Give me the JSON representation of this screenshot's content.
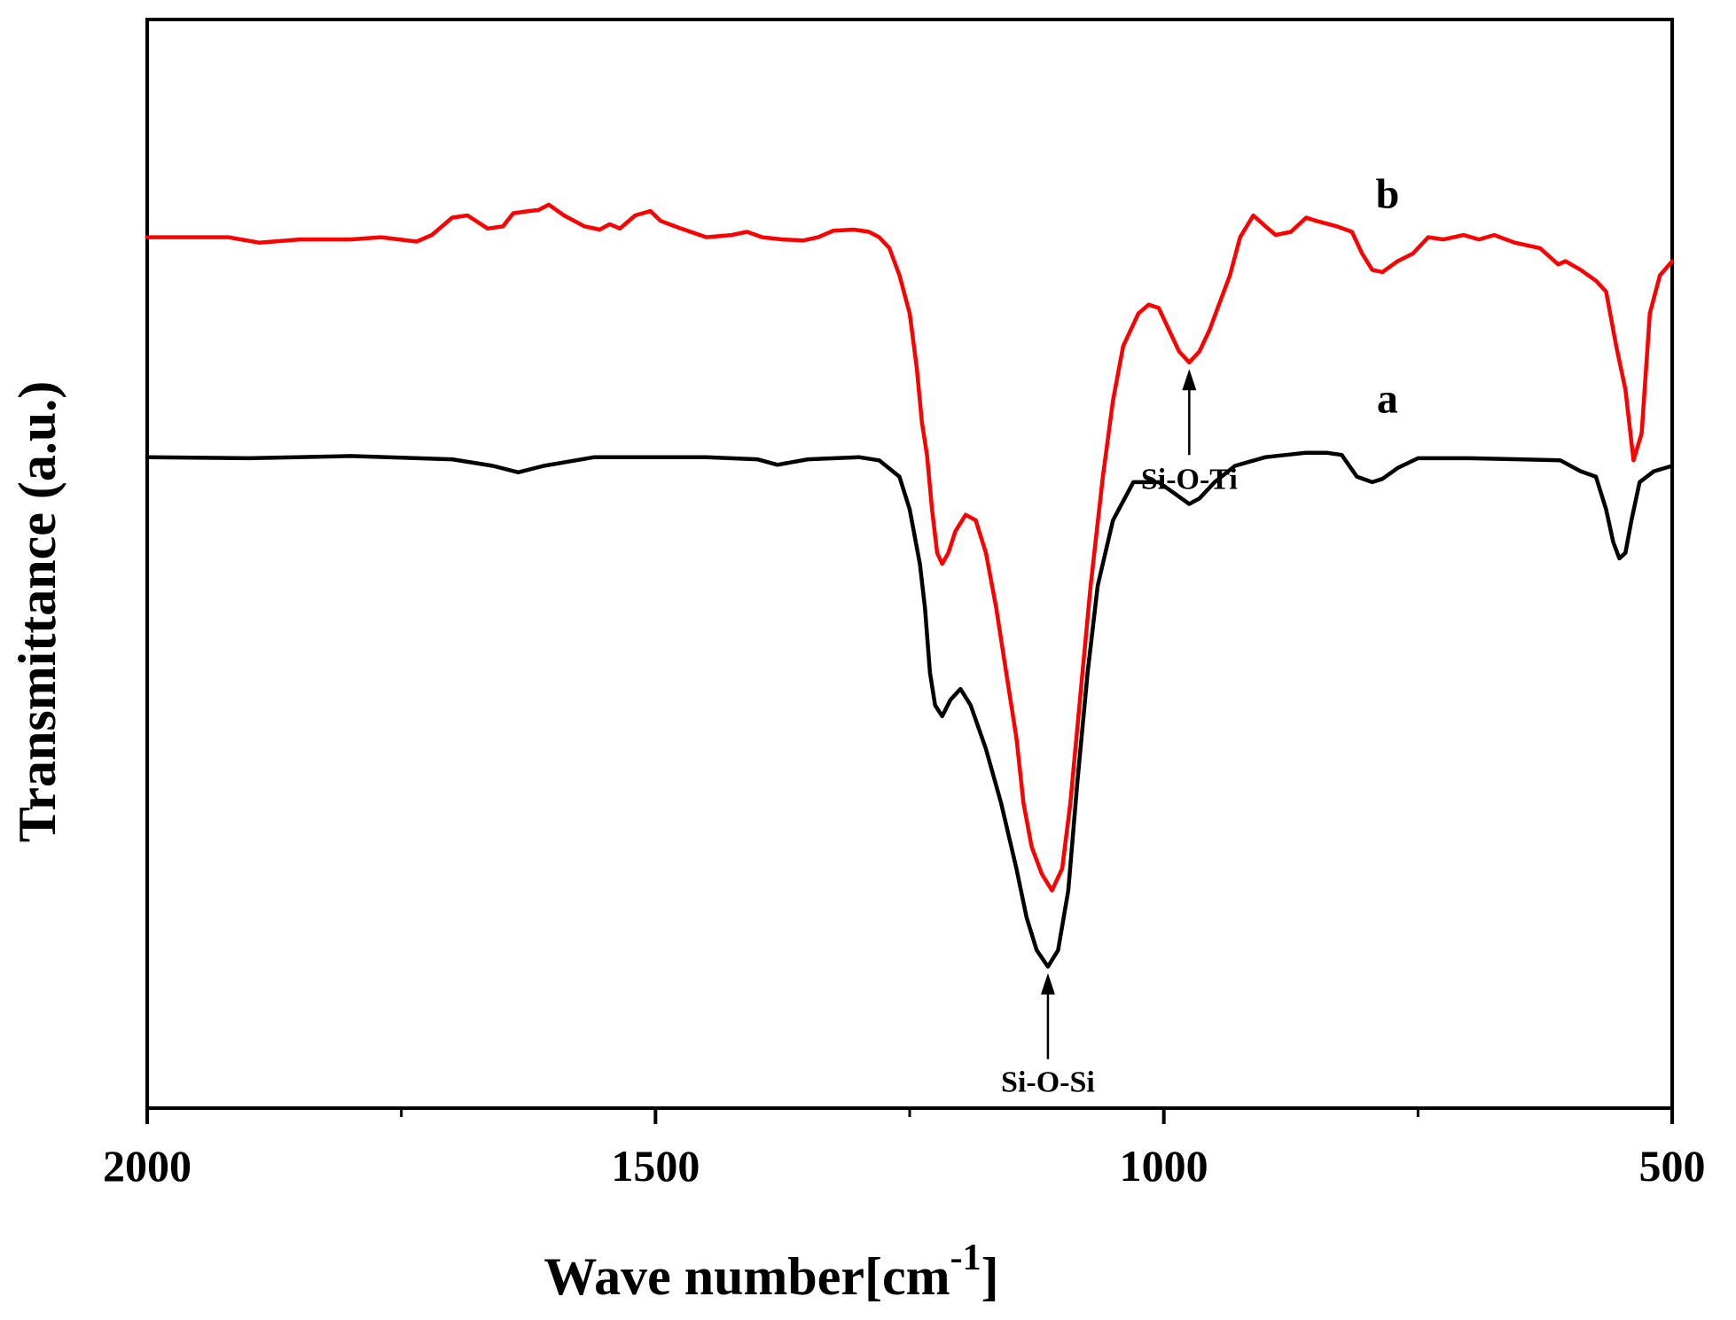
{
  "chart_data": {
    "type": "line",
    "title": "",
    "xlabel": "Wave number[cm",
    "xlabel_superscript": "-1",
    "xlabel_close": "]",
    "ylabel": "Transmittance (a.u.)",
    "xlim": [
      2000,
      500
    ],
    "x_ticks": [
      2000,
      1500,
      1000,
      500
    ],
    "x_tick_labels": [
      "2000",
      "1500",
      "1000",
      "500"
    ],
    "x_minor_ticks": [
      1750,
      1250,
      750
    ],
    "ylim": [
      0,
      100
    ],
    "y_ticks_shown": false,
    "grid": false,
    "series": [
      {
        "name": "a",
        "color": "#000000",
        "points": [
          [
            2000,
            59.8
          ],
          [
            1900,
            59.7
          ],
          [
            1800,
            59.9
          ],
          [
            1700,
            59.6
          ],
          [
            1660,
            59.0
          ],
          [
            1635,
            58.4
          ],
          [
            1610,
            59.0
          ],
          [
            1560,
            59.8
          ],
          [
            1500,
            59.8
          ],
          [
            1450,
            59.8
          ],
          [
            1400,
            59.6
          ],
          [
            1380,
            59.1
          ],
          [
            1350,
            59.6
          ],
          [
            1300,
            59.8
          ],
          [
            1280,
            59.5
          ],
          [
            1260,
            58.0
          ],
          [
            1250,
            55.0
          ],
          [
            1240,
            50.0
          ],
          [
            1235,
            46.0
          ],
          [
            1230,
            40.0
          ],
          [
            1225,
            37.0
          ],
          [
            1218,
            36.0
          ],
          [
            1210,
            37.5
          ],
          [
            1200,
            38.5
          ],
          [
            1190,
            37.0
          ],
          [
            1175,
            33.0
          ],
          [
            1160,
            28.0
          ],
          [
            1145,
            22.0
          ],
          [
            1135,
            17.5
          ],
          [
            1125,
            14.5
          ],
          [
            1114,
            13.0
          ],
          [
            1104,
            14.5
          ],
          [
            1094,
            20.0
          ],
          [
            1085,
            30.0
          ],
          [
            1075,
            40.0
          ],
          [
            1065,
            48.0
          ],
          [
            1050,
            54.0
          ],
          [
            1030,
            57.5
          ],
          [
            1005,
            57.5
          ],
          [
            990,
            56.5
          ],
          [
            975,
            55.5
          ],
          [
            965,
            56.0
          ],
          [
            950,
            57.5
          ],
          [
            930,
            59.0
          ],
          [
            900,
            59.8
          ],
          [
            860,
            60.2
          ],
          [
            840,
            60.2
          ],
          [
            825,
            60.0
          ],
          [
            810,
            58.0
          ],
          [
            795,
            57.5
          ],
          [
            785,
            57.8
          ],
          [
            770,
            58.8
          ],
          [
            750,
            59.7
          ],
          [
            700,
            59.7
          ],
          [
            650,
            59.6
          ],
          [
            610,
            59.5
          ],
          [
            590,
            58.5
          ],
          [
            575,
            58.0
          ],
          [
            565,
            55.0
          ],
          [
            558,
            52.0
          ],
          [
            552,
            50.5
          ],
          [
            546,
            51.0
          ],
          [
            540,
            54.0
          ],
          [
            532,
            57.5
          ],
          [
            518,
            58.5
          ],
          [
            500,
            59.0
          ]
        ]
      },
      {
        "name": "b",
        "color": "#ff0000",
        "points": [
          [
            2000,
            80.0
          ],
          [
            1920,
            80.0
          ],
          [
            1890,
            79.5
          ],
          [
            1850,
            79.8
          ],
          [
            1800,
            79.8
          ],
          [
            1770,
            80.0
          ],
          [
            1735,
            79.6
          ],
          [
            1720,
            80.2
          ],
          [
            1700,
            81.8
          ],
          [
            1685,
            82.0
          ],
          [
            1665,
            80.8
          ],
          [
            1650,
            81.0
          ],
          [
            1640,
            82.2
          ],
          [
            1625,
            82.4
          ],
          [
            1615,
            82.5
          ],
          [
            1605,
            83.0
          ],
          [
            1590,
            82.0
          ],
          [
            1570,
            81.0
          ],
          [
            1555,
            80.7
          ],
          [
            1545,
            81.2
          ],
          [
            1535,
            80.8
          ],
          [
            1520,
            82.0
          ],
          [
            1505,
            82.4
          ],
          [
            1495,
            81.5
          ],
          [
            1475,
            80.8
          ],
          [
            1450,
            80.0
          ],
          [
            1425,
            80.2
          ],
          [
            1410,
            80.5
          ],
          [
            1395,
            80.0
          ],
          [
            1375,
            79.8
          ],
          [
            1355,
            79.7
          ],
          [
            1340,
            80.0
          ],
          [
            1325,
            80.6
          ],
          [
            1305,
            80.7
          ],
          [
            1290,
            80.5
          ],
          [
            1280,
            80.0
          ],
          [
            1270,
            79.0
          ],
          [
            1260,
            76.5
          ],
          [
            1250,
            73.0
          ],
          [
            1243,
            68.0
          ],
          [
            1238,
            63.0
          ],
          [
            1233,
            60.0
          ],
          [
            1228,
            55.0
          ],
          [
            1223,
            51.0
          ],
          [
            1218,
            50.0
          ],
          [
            1212,
            51.0
          ],
          [
            1205,
            53.0
          ],
          [
            1195,
            54.5
          ],
          [
            1185,
            54.0
          ],
          [
            1175,
            51.0
          ],
          [
            1165,
            46.0
          ],
          [
            1155,
            40.0
          ],
          [
            1145,
            34.0
          ],
          [
            1138,
            28.0
          ],
          [
            1130,
            24.0
          ],
          [
            1120,
            21.5
          ],
          [
            1110,
            20.0
          ],
          [
            1100,
            22.0
          ],
          [
            1092,
            28.0
          ],
          [
            1082,
            38.0
          ],
          [
            1072,
            48.0
          ],
          [
            1060,
            58.0
          ],
          [
            1050,
            65.0
          ],
          [
            1040,
            70.0
          ],
          [
            1025,
            73.0
          ],
          [
            1015,
            73.8
          ],
          [
            1005,
            73.5
          ],
          [
            995,
            71.5
          ],
          [
            985,
            69.5
          ],
          [
            975,
            68.5
          ],
          [
            965,
            69.5
          ],
          [
            955,
            71.5
          ],
          [
            945,
            74.0
          ],
          [
            935,
            76.5
          ],
          [
            925,
            80.0
          ],
          [
            912,
            82.0
          ],
          [
            900,
            81.0
          ],
          [
            890,
            80.2
          ],
          [
            875,
            80.5
          ],
          [
            860,
            81.8
          ],
          [
            850,
            81.5
          ],
          [
            830,
            81.0
          ],
          [
            815,
            80.5
          ],
          [
            805,
            78.5
          ],
          [
            795,
            77.0
          ],
          [
            785,
            76.8
          ],
          [
            770,
            77.8
          ],
          [
            755,
            78.5
          ],
          [
            740,
            80.0
          ],
          [
            725,
            79.8
          ],
          [
            705,
            80.2
          ],
          [
            690,
            79.8
          ],
          [
            675,
            80.2
          ],
          [
            655,
            79.5
          ],
          [
            630,
            79.0
          ],
          [
            612,
            77.5
          ],
          [
            605,
            77.8
          ],
          [
            590,
            77.0
          ],
          [
            575,
            76.0
          ],
          [
            565,
            75.0
          ],
          [
            555,
            70.0
          ],
          [
            546,
            66.0
          ],
          [
            538,
            59.5
          ],
          [
            530,
            62.0
          ],
          [
            522,
            73.0
          ],
          [
            512,
            76.5
          ],
          [
            500,
            77.8
          ]
        ]
      }
    ],
    "curve_labels": [
      {
        "text": "a",
        "series": "a"
      },
      {
        "text": "b",
        "series": "b"
      }
    ],
    "annotations": [
      {
        "text": "Si-O-Si",
        "x": 1114,
        "y_arrow_tip": 12.4,
        "y_arrow_tail": 4.5,
        "y_text": 1.5
      },
      {
        "text": "Si-O-Ti",
        "x": 975,
        "y_arrow_tip": 67.9,
        "y_arrow_tail": 60.0,
        "y_text": 56.9
      }
    ]
  }
}
